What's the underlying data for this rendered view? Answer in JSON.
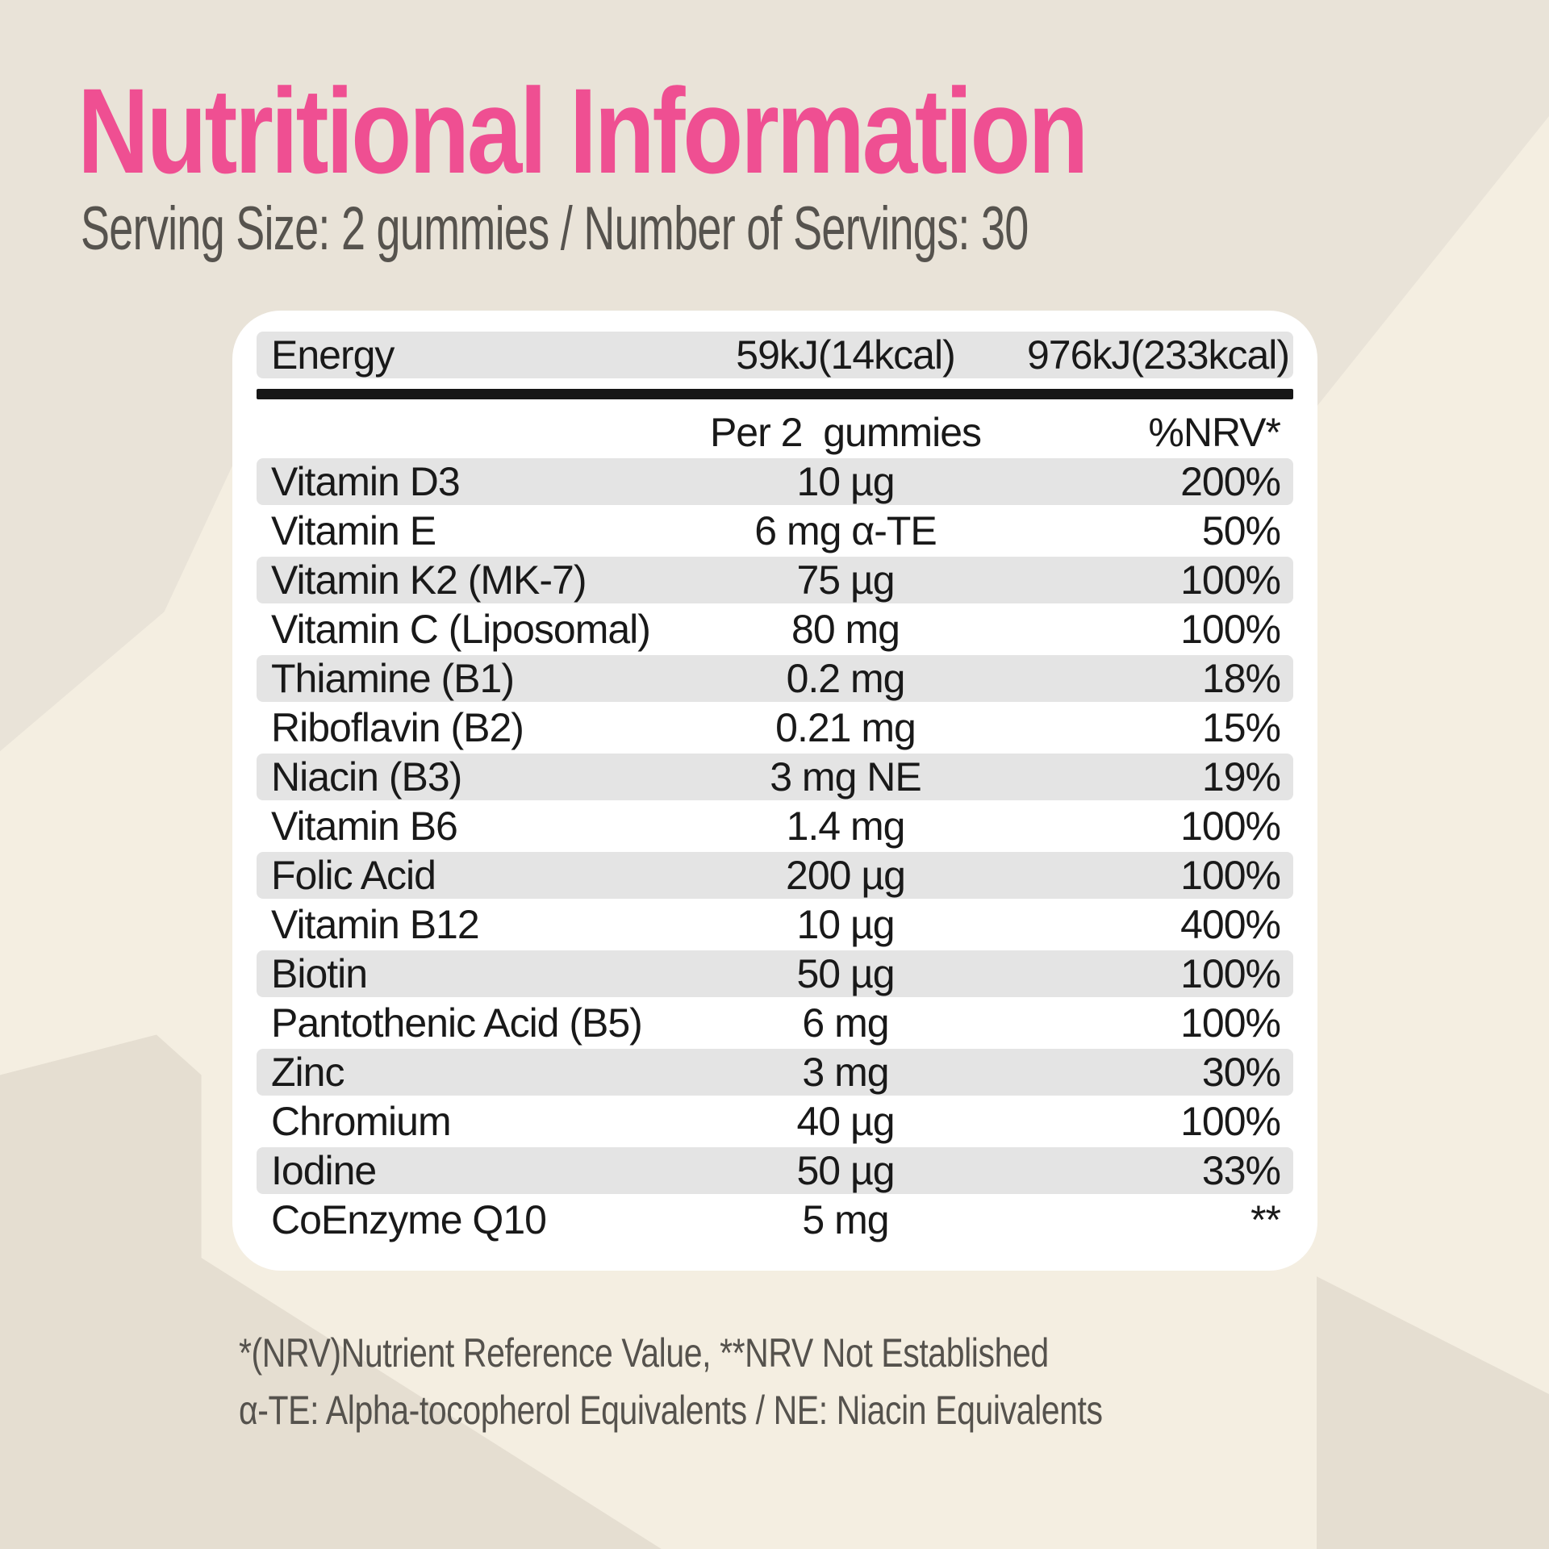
{
  "title": "Nutritional Information",
  "subtitle": "Serving Size: 2 gummies  / Number of Servings: 30",
  "colors": {
    "accent": "#ef4f92",
    "row_shade": "#e4e4e4",
    "bg_base": "#f4eee1",
    "bg_gray": "#e9e3d8",
    "bg_dark": "#e5ded1"
  },
  "table": {
    "energy": {
      "label": "Energy",
      "per_serving": "59kJ(14kcal)",
      "per_100g": "976kJ(233kcal)"
    },
    "header": {
      "amount_label": "Per 2  gummies",
      "nrv_label": "%NRV*"
    },
    "rows": [
      {
        "name": "Vitamin D3",
        "amount": "10 µg",
        "nrv": "200%"
      },
      {
        "name": "Vitamin E",
        "amount": "6 mg α-TE",
        "nrv": "50%"
      },
      {
        "name": "Vitamin K2 (MK-7)",
        "amount": "75 µg",
        "nrv": "100%"
      },
      {
        "name": "Vitamin C (Liposomal)",
        "amount": "80 mg",
        "nrv": "100%"
      },
      {
        "name": "Thiamine (B1)",
        "amount": "0.2 mg",
        "nrv": "18%"
      },
      {
        "name": "Riboflavin (B2)",
        "amount": "0.21 mg",
        "nrv": "15%"
      },
      {
        "name": "Niacin (B3)",
        "amount": "3 mg NE",
        "nrv": "19%"
      },
      {
        "name": "Vitamin B6",
        "amount": "1.4 mg",
        "nrv": "100%"
      },
      {
        "name": "Folic Acid",
        "amount": "200 µg",
        "nrv": "100%"
      },
      {
        "name": "Vitamin B12",
        "amount": "10 µg",
        "nrv": "400%"
      },
      {
        "name": "Biotin",
        "amount": "50 µg",
        "nrv": "100%"
      },
      {
        "name": "Pantothenic Acid (B5)",
        "amount": "6 mg",
        "nrv": "100%"
      },
      {
        "name": "Zinc",
        "amount": "3 mg",
        "nrv": "30%"
      },
      {
        "name": "Chromium",
        "amount": "40 µg",
        "nrv": "100%"
      },
      {
        "name": "Iodine",
        "amount": "50 µg",
        "nrv": "33%"
      },
      {
        "name": "CoEnzyme Q10",
        "amount": "5 mg",
        "nrv": "**"
      }
    ]
  },
  "footnotes": [
    "*(NRV)Nutrient Reference Value, **NRV Not Established",
    "α-TE:  Alpha-tocopherol Equivalents / NE: Niacin Equivalents"
  ]
}
